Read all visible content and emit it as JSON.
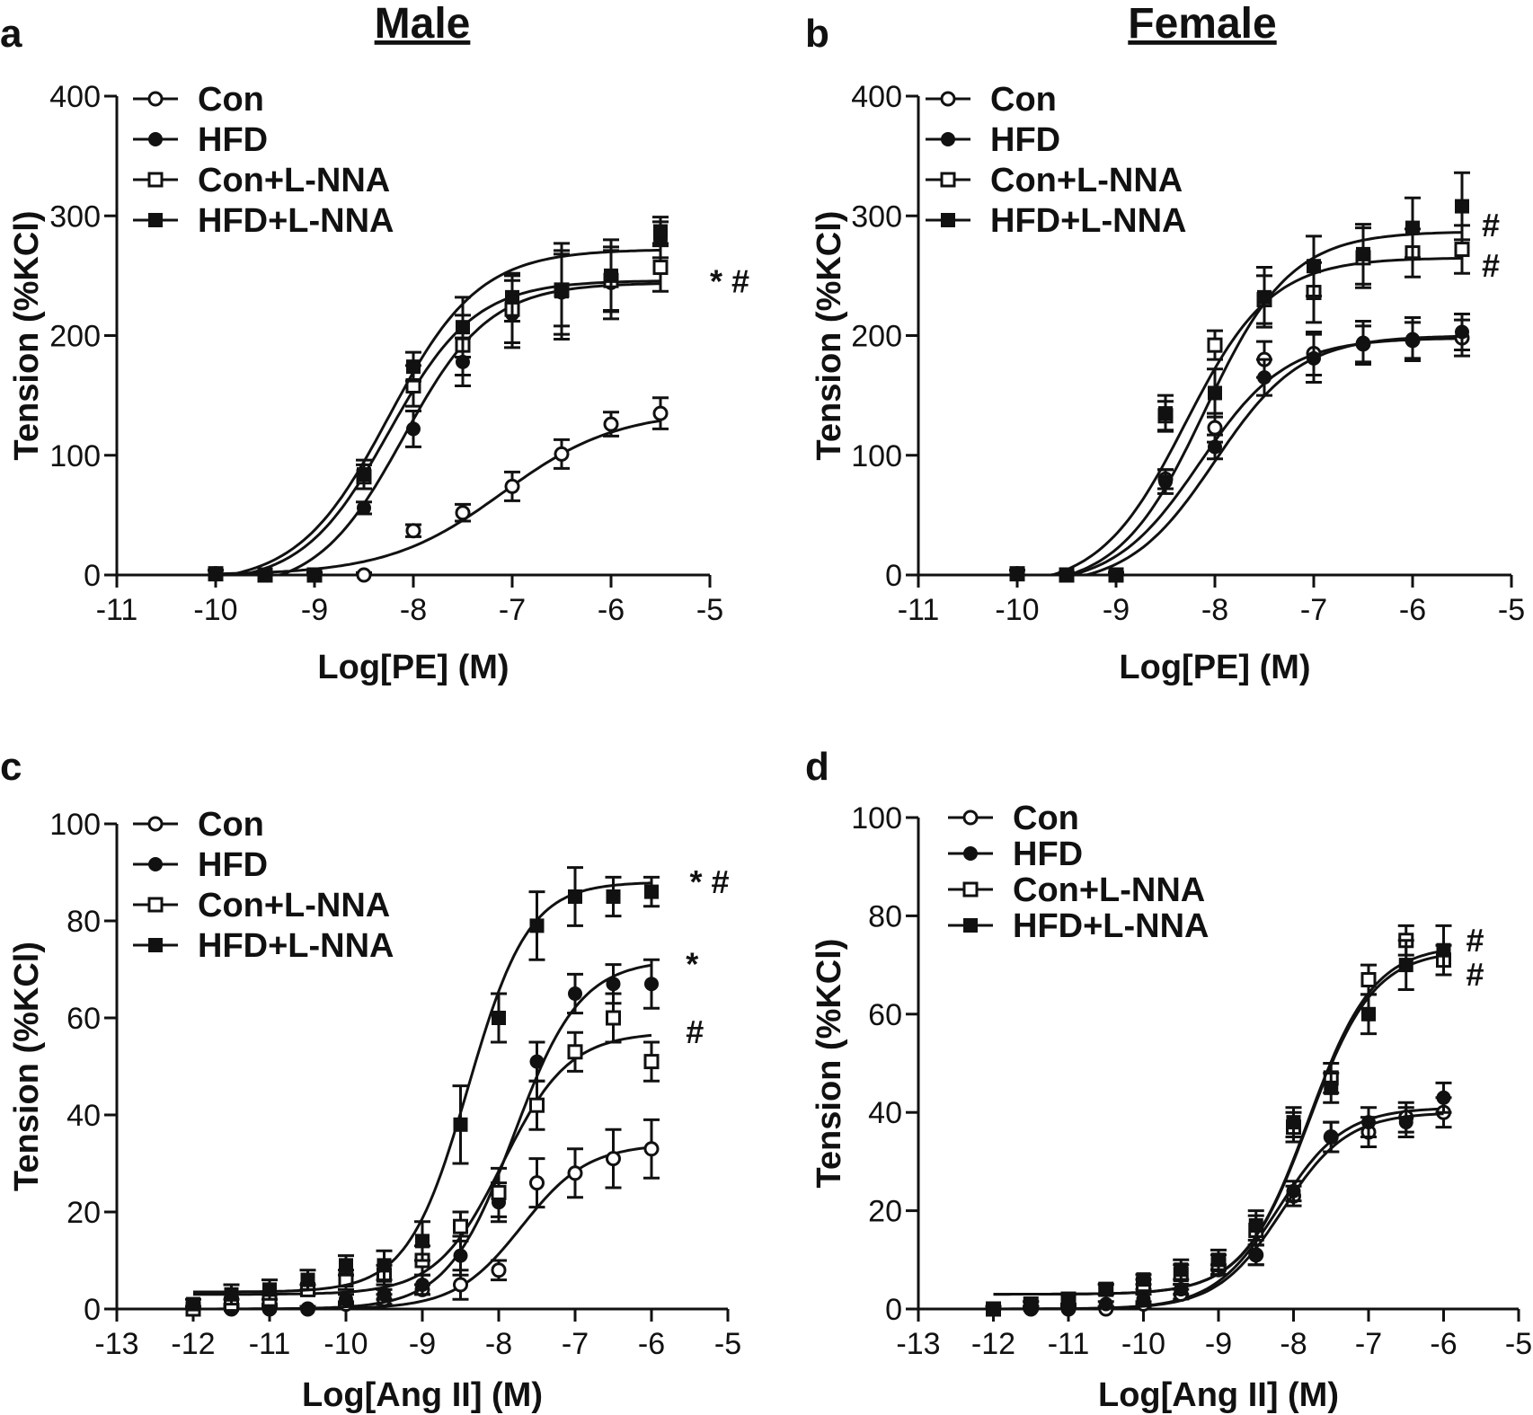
{
  "figure": {
    "headings": {
      "male": "Male",
      "female": "Female"
    }
  },
  "chart_data": [
    {
      "type": "line",
      "panel_label": "a",
      "xlabel": "Log[PE] (M)",
      "ylabel": "Tension (%KCl)",
      "xlim": [
        -11,
        -5
      ],
      "ylim": [
        0,
        400
      ],
      "xticks": [
        "-11",
        "-10",
        "-9",
        "-8",
        "-7",
        "-6",
        "-5"
      ],
      "yticks": [
        "0",
        "100",
        "200",
        "300",
        "400"
      ],
      "legend_position": "top-left",
      "annotations": [
        {
          "text": "* #",
          "x": -5.0,
          "y": 245
        }
      ],
      "series": [
        {
          "name": "Con",
          "marker": "open-circle",
          "x": [
            -10,
            -9.5,
            -9,
            -8.5,
            -8,
            -7.5,
            -7,
            -6.5,
            -6,
            -5.5
          ],
          "values": [
            1,
            0,
            0,
            0,
            37,
            52,
            74,
            101,
            126,
            135
          ],
          "errors": [
            3,
            2,
            2,
            2,
            5,
            7,
            12,
            12,
            10,
            13
          ],
          "fit": {
            "bottom": 0,
            "top": 137,
            "logEC50": -7.1,
            "hill": 0.75
          }
        },
        {
          "name": "HFD",
          "marker": "filled-circle",
          "x": [
            -10,
            -9.5,
            -9,
            -8.5,
            -8,
            -7.5,
            -7,
            -6.5,
            -6,
            -5.5
          ],
          "values": [
            1,
            0,
            0,
            56,
            122,
            178,
            218,
            236,
            244,
            280
          ],
          "errors": [
            3,
            2,
            2,
            5,
            15,
            20,
            28,
            35,
            30,
            15
          ],
          "fit": {
            "bottom": -14,
            "top": 244,
            "logEC50": -8.1,
            "hill": 1.0
          }
        },
        {
          "name": "Con+L-NNA",
          "marker": "open-square",
          "x": [
            -10,
            -9.5,
            -9,
            -8.5,
            -8,
            -7.5,
            -7,
            -6.5,
            -6,
            -5.5
          ],
          "values": [
            1,
            0,
            0,
            82,
            158,
            192,
            222,
            238,
            246,
            257
          ],
          "errors": [
            3,
            2,
            2,
            10,
            17,
            25,
            28,
            30,
            25,
            20
          ],
          "fit": {
            "bottom": -8,
            "top": 246,
            "logEC50": -8.25,
            "hill": 1.0
          }
        },
        {
          "name": "HFD+L-NNA",
          "marker": "filled-square",
          "x": [
            -10,
            -9.5,
            -9,
            -8.5,
            -8,
            -7.5,
            -7,
            -6.5,
            -6,
            -5.5
          ],
          "values": [
            1,
            0,
            0,
            84,
            174,
            207,
            232,
            237,
            250,
            287
          ],
          "errors": [
            3,
            2,
            2,
            12,
            12,
            25,
            20,
            40,
            30,
            12
          ],
          "fit": {
            "bottom": -8,
            "top": 272,
            "logEC50": -8.25,
            "hill": 0.95
          }
        }
      ]
    },
    {
      "type": "line",
      "panel_label": "b",
      "xlabel": "Log[PE] (M)",
      "ylabel": "Tension (%KCl)",
      "xlim": [
        -11,
        -5
      ],
      "ylim": [
        0,
        400
      ],
      "xticks": [
        "-11",
        "-10",
        "-9",
        "-8",
        "-7",
        "-6",
        "-5"
      ],
      "yticks": [
        "0",
        "100",
        "200",
        "300",
        "400"
      ],
      "legend_position": "top-left",
      "annotations": [
        {
          "text": "#",
          "x": -5.3,
          "y": 292
        },
        {
          "text": "#",
          "x": -5.3,
          "y": 258
        }
      ],
      "series": [
        {
          "name": "Con",
          "marker": "open-circle",
          "x": [
            -10,
            -9.5,
            -9,
            -8.5,
            -8,
            -7.5,
            -7,
            -6.5,
            -6,
            -5.5
          ],
          "values": [
            1,
            0,
            0,
            80,
            123,
            180,
            185,
            193,
            196,
            198
          ],
          "errors": [
            3,
            2,
            2,
            8,
            12,
            15,
            18,
            15,
            15,
            15
          ],
          "fit": {
            "bottom": -10,
            "top": 198,
            "logEC50": -8.15,
            "hill": 1.0
          }
        },
        {
          "name": "HFD",
          "marker": "filled-circle",
          "x": [
            -10,
            -9.5,
            -9,
            -8.5,
            -8,
            -7.5,
            -7,
            -6.5,
            -6,
            -5.5
          ],
          "values": [
            1,
            0,
            0,
            78,
            107,
            165,
            181,
            194,
            197,
            203
          ],
          "errors": [
            3,
            2,
            2,
            10,
            10,
            15,
            20,
            18,
            18,
            15
          ],
          "fit": {
            "bottom": -10,
            "top": 200,
            "logEC50": -8.0,
            "hill": 1.0
          }
        },
        {
          "name": "Con+L-NNA",
          "marker": "open-square",
          "x": [
            -10,
            -9.5,
            -9,
            -8.5,
            -8,
            -7.5,
            -7,
            -6.5,
            -6,
            -5.5
          ],
          "values": [
            1,
            0,
            0,
            133,
            192,
            230,
            236,
            265,
            269,
            272
          ],
          "errors": [
            3,
            2,
            2,
            12,
            12,
            20,
            25,
            25,
            20,
            20
          ],
          "fit": {
            "bottom": -12,
            "top": 265,
            "logEC50": -8.3,
            "hill": 1.0
          }
        },
        {
          "name": "HFD+L-NNA",
          "marker": "filled-square",
          "x": [
            -10,
            -9.5,
            -9,
            -8.5,
            -8,
            -7.5,
            -7,
            -6.5,
            -6,
            -5.5
          ],
          "values": [
            1,
            0,
            0,
            135,
            152,
            232,
            258,
            268,
            290,
            308
          ],
          "errors": [
            3,
            2,
            2,
            15,
            20,
            25,
            25,
            25,
            25,
            28
          ],
          "fit": {
            "bottom": -12,
            "top": 287,
            "logEC50": -8.1,
            "hill": 1.0
          }
        }
      ]
    },
    {
      "type": "line",
      "panel_label": "c",
      "xlabel": "Log[Ang II] (M)",
      "ylabel": "Tension (%KCl)",
      "xlim": [
        -13,
        -5
      ],
      "ylim": [
        0,
        100
      ],
      "xticks": [
        "-13",
        "-12",
        "-11",
        "-10",
        "-9",
        "-8",
        "-7",
        "-6",
        "-5"
      ],
      "yticks": [
        "0",
        "20",
        "40",
        "60",
        "80",
        "100"
      ],
      "legend_position": "top-left",
      "annotations": [
        {
          "text": "* #",
          "x": -5.5,
          "y": 88
        },
        {
          "text": "*",
          "x": -5.55,
          "y": 71
        },
        {
          "text": "#",
          "x": -5.55,
          "y": 57
        }
      ],
      "series": [
        {
          "name": "Con",
          "marker": "open-circle",
          "x": [
            -12,
            -11.5,
            -11,
            -10.5,
            -10,
            -9.5,
            -9,
            -8.5,
            -8,
            -7.5,
            -7,
            -6.5,
            -6
          ],
          "values": [
            0,
            0,
            0,
            0,
            1,
            2,
            4,
            5,
            8,
            26,
            28,
            31,
            33
          ],
          "errors": [
            0.5,
            0.5,
            0.5,
            0.5,
            0.5,
            1,
            1,
            3,
            2,
            5,
            5,
            6,
            6
          ],
          "fit": {
            "bottom": 0,
            "top": 34,
            "logEC50": -7.7,
            "hill": 1.0
          }
        },
        {
          "name": "HFD",
          "marker": "filled-circle",
          "x": [
            -12,
            -11.5,
            -11,
            -10.5,
            -10,
            -9.5,
            -9,
            -8.5,
            -8,
            -7.5,
            -7,
            -6.5,
            -6
          ],
          "values": [
            0,
            0,
            0,
            0,
            2,
            3,
            5,
            11,
            22,
            51,
            65,
            67,
            67
          ],
          "errors": [
            0.5,
            0.5,
            0.5,
            0.5,
            1,
            1,
            2,
            4,
            4,
            4,
            4,
            4,
            5
          ],
          "fit": {
            "bottom": 0,
            "top": 72,
            "logEC50": -7.8,
            "hill": 1.0
          }
        },
        {
          "name": "Con+L-NNA",
          "marker": "open-square",
          "x": [
            -12,
            -11.5,
            -11,
            -10.5,
            -10,
            -9.5,
            -9,
            -8.5,
            -8,
            -7.5,
            -7,
            -6.5,
            -6
          ],
          "values": [
            0,
            1,
            2,
            4,
            6,
            7,
            10,
            17,
            24,
            42,
            53,
            60,
            51
          ],
          "errors": [
            0.5,
            1,
            1,
            1,
            2,
            2,
            3,
            3,
            5,
            5,
            4,
            5,
            4
          ],
          "fit": {
            "bottom": 3,
            "top": 57,
            "logEC50": -7.95,
            "hill": 1.0
          }
        },
        {
          "name": "HFD+L-NNA",
          "marker": "filled-square",
          "x": [
            -12,
            -11.5,
            -11,
            -10.5,
            -10,
            -9.5,
            -9,
            -8.5,
            -8,
            -7.5,
            -7,
            -6.5,
            -6
          ],
          "values": [
            1,
            3,
            4,
            6,
            9,
            9,
            14,
            38,
            60,
            79,
            85,
            85,
            86
          ],
          "errors": [
            1,
            2,
            2,
            2,
            2,
            3,
            4,
            8,
            5,
            7,
            6,
            4,
            3
          ],
          "fit": {
            "bottom": 3.5,
            "top": 88,
            "logEC50": -8.4,
            "hill": 1.1
          }
        }
      ]
    },
    {
      "type": "line",
      "panel_label": "d",
      "xlabel": "Log[Ang II] (M)",
      "ylabel": "Tension (%KCl)",
      "xlim": [
        -13,
        -5
      ],
      "ylim": [
        0,
        100
      ],
      "xticks": [
        "-13",
        "-12",
        "-11",
        "-10",
        "-9",
        "-8",
        "-7",
        "-6",
        "-5"
      ],
      "yticks": [
        "0",
        "20",
        "40",
        "60",
        "80",
        "100"
      ],
      "legend_position": "top-left",
      "annotations": [
        {
          "text": "#",
          "x": -5.7,
          "y": 75
        },
        {
          "text": "#",
          "x": -5.7,
          "y": 68
        }
      ],
      "series": [
        {
          "name": "Con",
          "marker": "open-circle",
          "x": [
            -12,
            -11.5,
            -11,
            -10.5,
            -10,
            -9.5,
            -9,
            -8.5,
            -8,
            -7.5,
            -7,
            -6.5,
            -6
          ],
          "values": [
            0,
            0,
            0,
            0,
            1,
            3,
            8,
            11,
            23,
            35,
            36,
            39,
            40
          ],
          "errors": [
            0.5,
            0.5,
            0.5,
            0.5,
            0.5,
            1,
            1,
            2,
            2,
            3,
            3,
            3,
            3
          ],
          "fit": {
            "bottom": 0,
            "top": 41,
            "logEC50": -8.2,
            "hill": 1.0
          }
        },
        {
          "name": "HFD",
          "marker": "filled-circle",
          "x": [
            -12,
            -11.5,
            -11,
            -10.5,
            -10,
            -9.5,
            -9,
            -8.5,
            -8,
            -7.5,
            -7,
            -6.5,
            -6
          ],
          "values": [
            0,
            0,
            0,
            1,
            2,
            4,
            9,
            11,
            24,
            35,
            38,
            38,
            43
          ],
          "errors": [
            0.5,
            0.5,
            0.5,
            0.5,
            1,
            1,
            2,
            2,
            2,
            3,
            3,
            3,
            3
          ],
          "fit": {
            "bottom": 0,
            "top": 40,
            "logEC50": -8.15,
            "hill": 1.0
          }
        },
        {
          "name": "Con+L-NNA",
          "marker": "open-square",
          "x": [
            -12,
            -11.5,
            -11,
            -10.5,
            -10,
            -9.5,
            -9,
            -8.5,
            -8,
            -7.5,
            -7,
            -6.5,
            -6
          ],
          "values": [
            0,
            1,
            2,
            4,
            5,
            7,
            9,
            16,
            37,
            47,
            67,
            75,
            71
          ],
          "errors": [
            0.5,
            0.5,
            1,
            1,
            1,
            2,
            2,
            3,
            3,
            3,
            3,
            3,
            3
          ],
          "fit": {
            "bottom": 3,
            "top": 73,
            "logEC50": -7.8,
            "hill": 1.0
          }
        },
        {
          "name": "HFD+L-NNA",
          "marker": "filled-square",
          "x": [
            -12,
            -11.5,
            -11,
            -10.5,
            -10,
            -9.5,
            -9,
            -8.5,
            -8,
            -7.5,
            -7,
            -6.5,
            -6
          ],
          "values": [
            0,
            1,
            2,
            4,
            6,
            8,
            10,
            17,
            38,
            45,
            60,
            70,
            73
          ],
          "errors": [
            0.5,
            0.5,
            1,
            1,
            1,
            2,
            2,
            3,
            3,
            3,
            4,
            5,
            5
          ],
          "fit": {
            "bottom": 3,
            "top": 74,
            "logEC50": -7.8,
            "hill": 1.0
          }
        }
      ]
    }
  ]
}
